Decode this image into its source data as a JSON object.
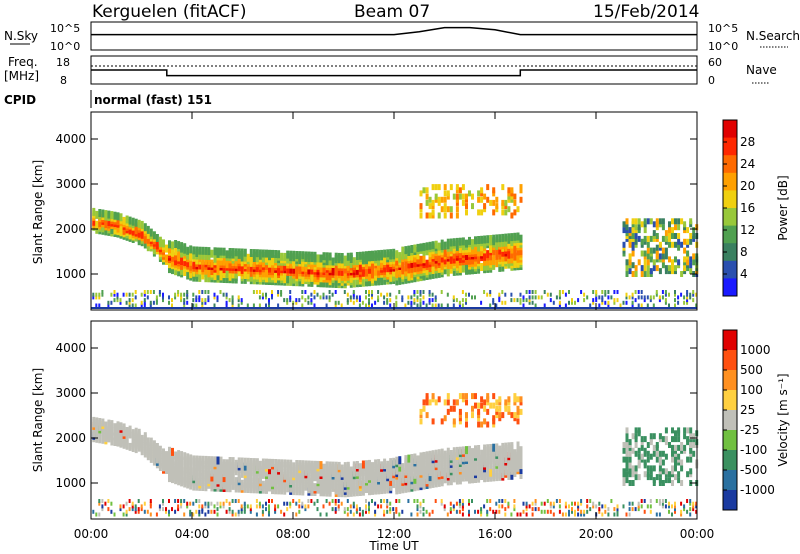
{
  "header": {
    "station": "Kerguelen (fitACF)",
    "beam": "Beam 07",
    "date": "15/Feb/2014"
  },
  "top_panel": {
    "left_labels": {
      "nsky": "N.Sky",
      "freq_line1": "Freq.",
      "freq_line2": "[MHz]",
      "cpid": "CPID"
    },
    "right_labels": {
      "nsearch": "N.Search",
      "nave": "Nave"
    },
    "nsky_ticks": [
      "10^5",
      "10^0"
    ],
    "nsearch_ticks": [
      "10^5",
      "10^0"
    ],
    "freq_ticks": [
      "18",
      "8"
    ],
    "nave_ticks": [
      "60",
      "0"
    ],
    "cpid_text": "normal (fast) 151"
  },
  "time_axis": {
    "label": "Time UT",
    "ticks": [
      "00:00",
      "04:00",
      "08:00",
      "12:00",
      "16:00",
      "20:00",
      "00:00"
    ]
  },
  "power_colorbar": {
    "label": "Power [dB]",
    "ticks": [
      "28",
      "24",
      "20",
      "16",
      "12",
      "8",
      "4"
    ],
    "colors": [
      "#1a1aff",
      "#2a4faf",
      "#3a8060",
      "#50a050",
      "#98c83a",
      "#f0d010",
      "#ffa000",
      "#ff6a00",
      "#ff2800",
      "#e00000"
    ]
  },
  "velocity_colorbar": {
    "label": "Velocity [m s⁻¹]",
    "ticks": [
      "1000",
      "500",
      "100",
      "25",
      "-25",
      "-100",
      "-500",
      "-1000"
    ],
    "colors": [
      "#1a3aa0",
      "#2a70a0",
      "#3a9060",
      "#70c040",
      "#c0c0b8",
      "#ffd040",
      "#ff9020",
      "#ff5010",
      "#e00000"
    ]
  },
  "chart_data": [
    {
      "type": "line",
      "name": "N.Sky / N.Search",
      "x": [
        0,
        4,
        8,
        12,
        13,
        14,
        15,
        16,
        17,
        20,
        24
      ],
      "y": [
        0.55,
        0.55,
        0.55,
        0.55,
        0.65,
        0.8,
        0.8,
        0.72,
        0.55,
        0.55,
        0.55
      ],
      "ylim": [
        0,
        1
      ]
    },
    {
      "type": "line",
      "name": "Freq / Nave",
      "x": [
        0,
        3,
        3,
        17,
        17,
        24
      ],
      "y": [
        13,
        13,
        11,
        11,
        13,
        13
      ],
      "ylim": [
        8,
        18
      ]
    },
    {
      "type": "heatmap",
      "name": "Power",
      "ylabel": "Slant Range [km]",
      "xlabel": "Time UT",
      "xlim": [
        0,
        24
      ],
      "ylim": [
        200,
        4600
      ],
      "yticks": [
        1000,
        2000,
        3000,
        4000
      ],
      "echo_band_center": [
        [
          0,
          2200
        ],
        [
          1,
          2100
        ],
        [
          2,
          1900
        ],
        [
          3,
          1400
        ],
        [
          4,
          1200
        ],
        [
          6,
          1150
        ],
        [
          8,
          1100
        ],
        [
          10,
          1050
        ],
        [
          12,
          1150
        ],
        [
          14,
          1350
        ],
        [
          16,
          1450
        ],
        [
          17,
          1500
        ]
      ]
    },
    {
      "type": "heatmap",
      "name": "Velocity",
      "ylabel": "Slant Range [km]",
      "xlabel": "Time UT",
      "xlim": [
        0,
        24
      ],
      "ylim": [
        200,
        4600
      ],
      "yticks": [
        1000,
        2000,
        3000,
        4000
      ],
      "echo_band_center": [
        [
          0,
          2200
        ],
        [
          1,
          2100
        ],
        [
          2,
          1900
        ],
        [
          3,
          1400
        ],
        [
          4,
          1200
        ],
        [
          6,
          1150
        ],
        [
          8,
          1100
        ],
        [
          10,
          1050
        ],
        [
          12,
          1150
        ],
        [
          14,
          1350
        ],
        [
          16,
          1450
        ],
        [
          17,
          1500
        ]
      ]
    }
  ]
}
